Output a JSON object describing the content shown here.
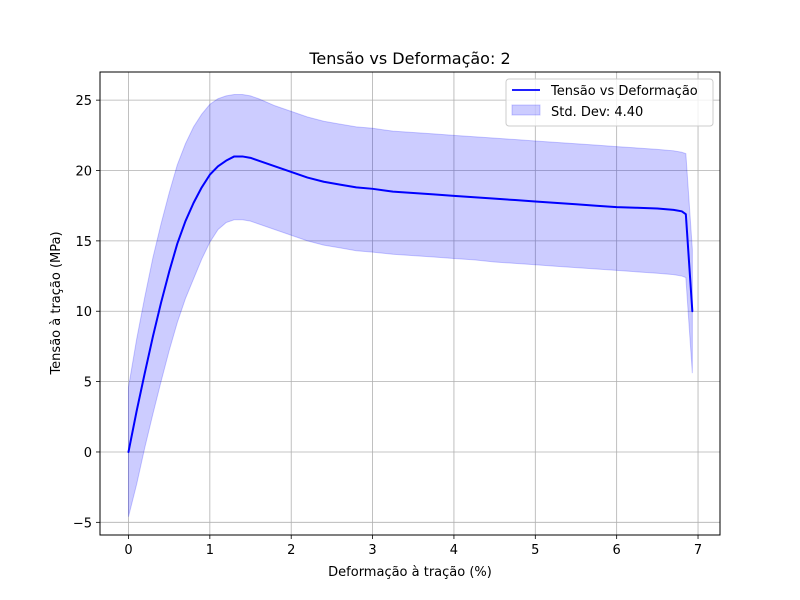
{
  "chart_data": {
    "type": "line",
    "title": "Tensão vs Deformação: 2",
    "xlabel": "Deformação à tração (%)",
    "ylabel": "Tensão à tração (MPa)",
    "xlim": [
      -0.35,
      7.27
    ],
    "ylim": [
      -5.9,
      27.0
    ],
    "xticks": [
      0,
      1,
      2,
      3,
      4,
      5,
      6,
      7
    ],
    "yticks": [
      -5,
      0,
      5,
      10,
      15,
      20,
      25
    ],
    "xtick_labels": [
      "0",
      "1",
      "2",
      "3",
      "4",
      "5",
      "6",
      "7"
    ],
    "ytick_labels": [
      "−5",
      "0",
      "5",
      "10",
      "15",
      "20",
      "25"
    ],
    "grid": true,
    "legend_position": "top-right",
    "series": [
      {
        "name": "Tensão vs Deformação",
        "color": "#0000ff",
        "x": [
          0,
          0.1,
          0.2,
          0.3,
          0.4,
          0.5,
          0.6,
          0.7,
          0.8,
          0.9,
          1.0,
          1.1,
          1.2,
          1.3,
          1.4,
          1.5,
          1.6,
          1.8,
          2.0,
          2.2,
          2.4,
          2.6,
          2.8,
          3.0,
          3.25,
          3.5,
          3.75,
          4.0,
          4.25,
          4.5,
          4.75,
          5.0,
          5.25,
          5.5,
          5.75,
          6.0,
          6.25,
          6.5,
          6.7,
          6.8,
          6.85,
          6.93
        ],
        "y": [
          0,
          2.9,
          5.6,
          8.2,
          10.6,
          12.8,
          14.8,
          16.4,
          17.7,
          18.8,
          19.7,
          20.3,
          20.7,
          21.0,
          21.0,
          20.9,
          20.7,
          20.3,
          19.9,
          19.5,
          19.2,
          19.0,
          18.8,
          18.7,
          18.5,
          18.4,
          18.3,
          18.2,
          18.1,
          18.0,
          17.9,
          17.8,
          17.7,
          17.6,
          17.5,
          17.4,
          17.35,
          17.3,
          17.2,
          17.1,
          16.9,
          10.0
        ]
      }
    ],
    "band": {
      "name": "Std. Dev: 4.40",
      "color": "#0000ff",
      "opacity": 0.2,
      "x": [
        0,
        0.1,
        0.2,
        0.3,
        0.4,
        0.5,
        0.6,
        0.7,
        0.8,
        0.9,
        1.0,
        1.1,
        1.2,
        1.3,
        1.4,
        1.5,
        1.6,
        1.8,
        2.0,
        2.2,
        2.4,
        2.6,
        2.8,
        3.0,
        3.25,
        3.5,
        3.75,
        4.0,
        4.25,
        4.5,
        4.75,
        5.0,
        5.25,
        5.5,
        5.75,
        6.0,
        6.25,
        6.5,
        6.7,
        6.8,
        6.85,
        6.93
      ],
      "upper": [
        4.6,
        8.0,
        11.0,
        13.8,
        16.2,
        18.4,
        20.4,
        21.9,
        23.1,
        24.0,
        24.7,
        25.1,
        25.3,
        25.4,
        25.4,
        25.3,
        25.1,
        24.6,
        24.2,
        23.8,
        23.5,
        23.3,
        23.1,
        23.0,
        22.8,
        22.7,
        22.6,
        22.5,
        22.4,
        22.3,
        22.2,
        22.1,
        22.0,
        21.9,
        21.8,
        21.7,
        21.6,
        21.5,
        21.4,
        21.3,
        21.2,
        14.4
      ],
      "lower": [
        -4.6,
        -2.3,
        0.3,
        2.7,
        5.0,
        7.2,
        9.2,
        10.9,
        12.3,
        13.7,
        14.9,
        15.8,
        16.3,
        16.5,
        16.5,
        16.4,
        16.2,
        15.8,
        15.4,
        15.0,
        14.7,
        14.5,
        14.3,
        14.2,
        14.05,
        13.95,
        13.85,
        13.75,
        13.65,
        13.5,
        13.4,
        13.3,
        13.2,
        13.1,
        13.0,
        12.9,
        12.8,
        12.7,
        12.6,
        12.5,
        12.4,
        5.6
      ]
    }
  }
}
